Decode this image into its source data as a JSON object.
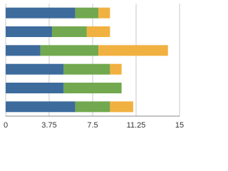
{
  "chart_data": {
    "type": "stacked-bar-horizontal",
    "categories": [
      null,
      null,
      null,
      null,
      null,
      null
    ],
    "series": [
      {
        "color": "#3d6b9c",
        "values": [
          6,
          4,
          3,
          5,
          5,
          6
        ]
      },
      {
        "color": "#72a84f",
        "values": [
          2,
          3,
          5,
          4,
          5,
          3
        ]
      },
      {
        "color": "#f1b140",
        "values": [
          1,
          2,
          6,
          1,
          0,
          2
        ]
      }
    ],
    "xlim": [
      0,
      15
    ],
    "xticks": [
      0,
      3.75,
      7.5,
      11.25,
      15
    ],
    "grid": true
  }
}
